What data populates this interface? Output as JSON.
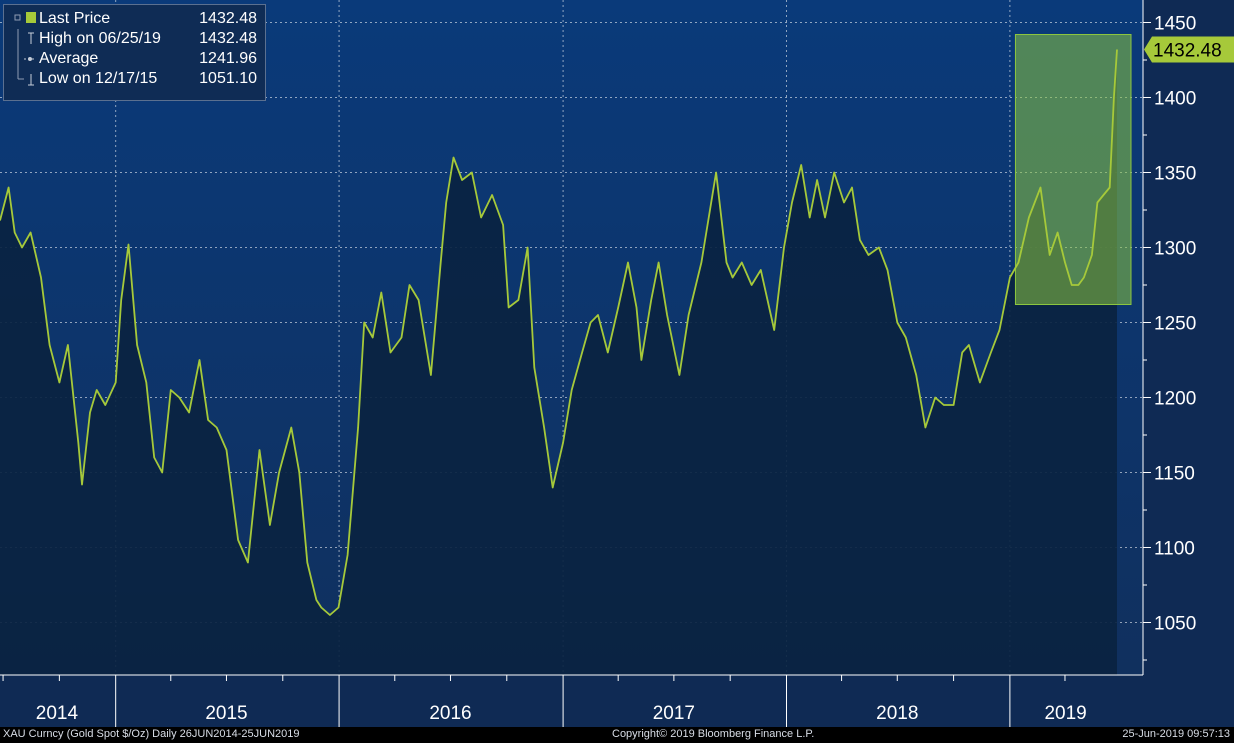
{
  "chart_data": {
    "type": "line",
    "title": "",
    "ylim": [
      1015,
      1465
    ],
    "y_ticks": [
      1050,
      1100,
      1150,
      1200,
      1250,
      1300,
      1350,
      1400,
      1450
    ],
    "x_range": [
      "2014-06-26",
      "2019-06-25"
    ],
    "x_year_labels": [
      {
        "label": "2014",
        "date": "2014-09-27"
      },
      {
        "label": "2015",
        "date": "2015-07-01"
      },
      {
        "label": "2016",
        "date": "2016-07-01"
      },
      {
        "label": "2017",
        "date": "2017-07-01"
      },
      {
        "label": "2018",
        "date": "2018-07-01"
      },
      {
        "label": "2019",
        "date": "2019-04-02"
      }
    ],
    "x_year_boundaries": [
      "2015-01-01",
      "2016-01-01",
      "2017-01-01",
      "2018-01-01",
      "2019-01-01"
    ],
    "x_minor_ticks": [
      "2014-07-01",
      "2014-10-01",
      "2015-04-01",
      "2015-07-01",
      "2015-10-01",
      "2016-04-01",
      "2016-07-01",
      "2016-10-01",
      "2017-04-01",
      "2017-07-01",
      "2017-10-01",
      "2018-04-01",
      "2018-07-01",
      "2018-10-01",
      "2019-04-01"
    ],
    "grid": true,
    "legend_position": "top-left",
    "series": [
      {
        "name": "Last Price",
        "color": "#a6c93a",
        "x": [
          "2014-06-26",
          "2014-07-10",
          "2014-07-20",
          "2014-08-01",
          "2014-08-15",
          "2014-09-01",
          "2014-09-15",
          "2014-10-01",
          "2014-10-15",
          "2014-11-01",
          "2014-11-07",
          "2014-11-20",
          "2014-12-01",
          "2014-12-15",
          "2015-01-01",
          "2015-01-10",
          "2015-01-22",
          "2015-02-05",
          "2015-02-20",
          "2015-03-05",
          "2015-03-18",
          "2015-04-01",
          "2015-04-15",
          "2015-05-01",
          "2015-05-18",
          "2015-06-01",
          "2015-06-15",
          "2015-07-01",
          "2015-07-20",
          "2015-08-05",
          "2015-08-24",
          "2015-09-10",
          "2015-09-25",
          "2015-10-15",
          "2015-10-28",
          "2015-11-10",
          "2015-11-25",
          "2015-12-03",
          "2015-12-17",
          "2015-12-31",
          "2016-01-15",
          "2016-02-01",
          "2016-02-11",
          "2016-02-25",
          "2016-03-10",
          "2016-03-25",
          "2016-04-12",
          "2016-04-25",
          "2016-05-10",
          "2016-05-30",
          "2016-06-15",
          "2016-06-24",
          "2016-07-06",
          "2016-07-20",
          "2016-08-05",
          "2016-08-20",
          "2016-09-07",
          "2016-09-25",
          "2016-10-04",
          "2016-10-20",
          "2016-11-04",
          "2016-11-15",
          "2016-12-01",
          "2016-12-15",
          "2017-01-01",
          "2017-01-15",
          "2017-02-01",
          "2017-02-15",
          "2017-02-27",
          "2017-03-15",
          "2017-04-01",
          "2017-04-17",
          "2017-05-01",
          "2017-05-09",
          "2017-05-25",
          "2017-06-06",
          "2017-06-20",
          "2017-07-10",
          "2017-07-25",
          "2017-08-15",
          "2017-09-08",
          "2017-09-25",
          "2017-10-05",
          "2017-10-20",
          "2017-11-05",
          "2017-11-20",
          "2017-12-12",
          "2017-12-28",
          "2018-01-10",
          "2018-01-25",
          "2018-02-08",
          "2018-02-20",
          "2018-03-05",
          "2018-03-20",
          "2018-04-05",
          "2018-04-18",
          "2018-05-01",
          "2018-05-15",
          "2018-06-01",
          "2018-06-15",
          "2018-07-01",
          "2018-07-15",
          "2018-08-01",
          "2018-08-16",
          "2018-09-01",
          "2018-09-15",
          "2018-10-01",
          "2018-10-15",
          "2018-10-26",
          "2018-11-13",
          "2018-12-01",
          "2018-12-15",
          "2019-01-01",
          "2019-01-15",
          "2019-02-01",
          "2019-02-20",
          "2019-03-07",
          "2019-03-20",
          "2019-04-01",
          "2019-04-12",
          "2019-04-23",
          "2019-05-02",
          "2019-05-15",
          "2019-05-24",
          "2019-06-03",
          "2019-06-13",
          "2019-06-20",
          "2019-06-25"
        ],
        "values": [
          1318,
          1340,
          1310,
          1300,
          1310,
          1280,
          1235,
          1210,
          1235,
          1170,
          1142,
          1190,
          1205,
          1195,
          1210,
          1265,
          1302,
          1235,
          1210,
          1160,
          1150,
          1205,
          1200,
          1190,
          1225,
          1185,
          1180,
          1165,
          1105,
          1090,
          1165,
          1115,
          1150,
          1180,
          1150,
          1090,
          1065,
          1060,
          1055,
          1060,
          1095,
          1180,
          1250,
          1240,
          1270,
          1230,
          1240,
          1275,
          1265,
          1215,
          1290,
          1330,
          1360,
          1345,
          1350,
          1320,
          1335,
          1315,
          1260,
          1265,
          1300,
          1220,
          1180,
          1140,
          1170,
          1205,
          1230,
          1250,
          1255,
          1230,
          1260,
          1290,
          1260,
          1225,
          1265,
          1290,
          1255,
          1215,
          1255,
          1290,
          1350,
          1290,
          1280,
          1290,
          1275,
          1285,
          1245,
          1300,
          1330,
          1355,
          1320,
          1345,
          1320,
          1350,
          1330,
          1340,
          1305,
          1295,
          1300,
          1285,
          1250,
          1240,
          1215,
          1180,
          1200,
          1195,
          1195,
          1230,
          1235,
          1210,
          1230,
          1245,
          1280,
          1290,
          1320,
          1340,
          1295,
          1310,
          1290,
          1275,
          1275,
          1280,
          1295,
          1330,
          1335,
          1340,
          1400,
          1432
        ]
      }
    ],
    "highlight_box": {
      "x_start": "2019-01-15",
      "x_end": "2019-06-25",
      "y_start": 1262,
      "y_end": 1442,
      "color": "#8cc63f"
    },
    "last_price_tag": "1432.48"
  },
  "legend": {
    "rows": [
      {
        "label": "Last Price",
        "value": "1432.48"
      },
      {
        "label": "High on 06/25/19",
        "value": "1432.48"
      },
      {
        "label": "Average",
        "value": "1241.96"
      },
      {
        "label": "Low on 12/17/15",
        "value": "1051.10"
      }
    ]
  },
  "footer": {
    "left": "XAU Curncy (Gold Spot  $/Oz)  Daily 26JUN2014-25JUN2019",
    "center": "Copyright© 2019 Bloomberg Finance L.P.",
    "right": "25-Jun-2019 09:57:13"
  },
  "colors": {
    "background": "#0e2a57",
    "line": "#a6c93a",
    "fill_under": "#0a2341",
    "axis_text": "#ffffff",
    "footer_bg": "#000000"
  }
}
